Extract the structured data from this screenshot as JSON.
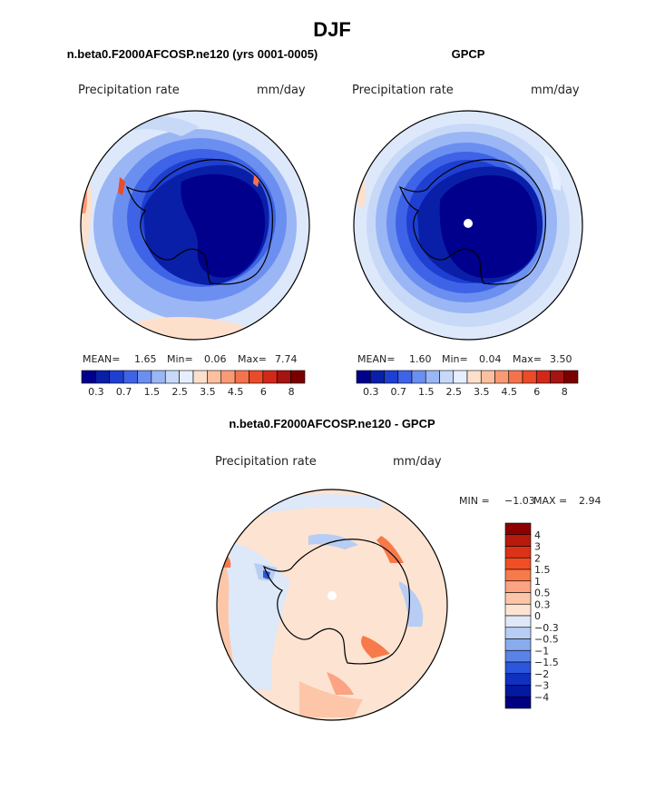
{
  "figure": {
    "season_title": "DJF",
    "difference_title": "n.beta0.F2000AFCOSP.ne120 - GPCP"
  },
  "chart_data": [
    {
      "type": "heatmap",
      "projection": "south polar stereographic",
      "title": "n.beta0.F2000AFCOSP.ne120 (yrs 0001-0005)",
      "left_label": "Precipitation rate",
      "right_label": "mm/day",
      "stats": {
        "mean_label": "MEAN=",
        "mean": "1.65",
        "min_label": "Min=",
        "min": "0.06",
        "max_label": "Max=",
        "max": "7.74"
      },
      "colorbar": {
        "orientation": "horizontal",
        "levels": [
          "0.3",
          "0.7",
          "1.5",
          "2.5",
          "3.5",
          "4.5",
          "6",
          "8"
        ],
        "colors": [
          "#00008c",
          "#0a1fa8",
          "#1e3fd1",
          "#3f63e6",
          "#6b8ff0",
          "#9bb6f4",
          "#c8d9f8",
          "#e6efff",
          "#fde0cc",
          "#fcbfa0",
          "#fa9a75",
          "#f4734c",
          "#ea4b28",
          "#d2281a",
          "#a51410",
          "#7a0000"
        ]
      }
    },
    {
      "type": "heatmap",
      "projection": "south polar stereographic",
      "title": "GPCP",
      "left_label": "Precipitation rate",
      "right_label": "mm/day",
      "stats": {
        "mean_label": "MEAN=",
        "mean": "1.60",
        "min_label": "Min=",
        "min": "0.04",
        "max_label": "Max=",
        "max": "3.50"
      },
      "colorbar": {
        "orientation": "horizontal",
        "levels": [
          "0.3",
          "0.7",
          "1.5",
          "2.5",
          "3.5",
          "4.5",
          "6",
          "8"
        ],
        "colors": [
          "#00008c",
          "#0a1fa8",
          "#1e3fd1",
          "#3f63e6",
          "#6b8ff0",
          "#9bb6f4",
          "#c8d9f8",
          "#e6efff",
          "#fde0cc",
          "#fcbfa0",
          "#fa9a75",
          "#f4734c",
          "#ea4b28",
          "#d2281a",
          "#a51410",
          "#7a0000"
        ]
      }
    },
    {
      "type": "heatmap",
      "projection": "south polar stereographic",
      "title": "n.beta0.F2000AFCOSP.ne120 - GPCP",
      "left_label": "Precipitation rate",
      "right_label": "mm/day",
      "stats": {
        "min_label": "MIN =",
        "min": "−1.03",
        "max_label": "MAX =",
        "max": "2.94"
      },
      "colorbar": {
        "orientation": "vertical",
        "levels": [
          "4",
          "3",
          "2",
          "1.5",
          "1",
          "0.5",
          "0.3",
          "0",
          "−0.3",
          "−0.5",
          "−1",
          "−1.5",
          "−2",
          "−3",
          "−4"
        ],
        "colors": [
          "#8c0000",
          "#b81a0e",
          "#dc3217",
          "#f04e24",
          "#f77a4a",
          "#fba382",
          "#fdc6a8",
          "#fde3d2",
          "#dde8f8",
          "#b7cdf3",
          "#8aacee",
          "#5a83e8",
          "#2c56db",
          "#1030c0",
          "#0518a0",
          "#000080"
        ]
      }
    }
  ]
}
